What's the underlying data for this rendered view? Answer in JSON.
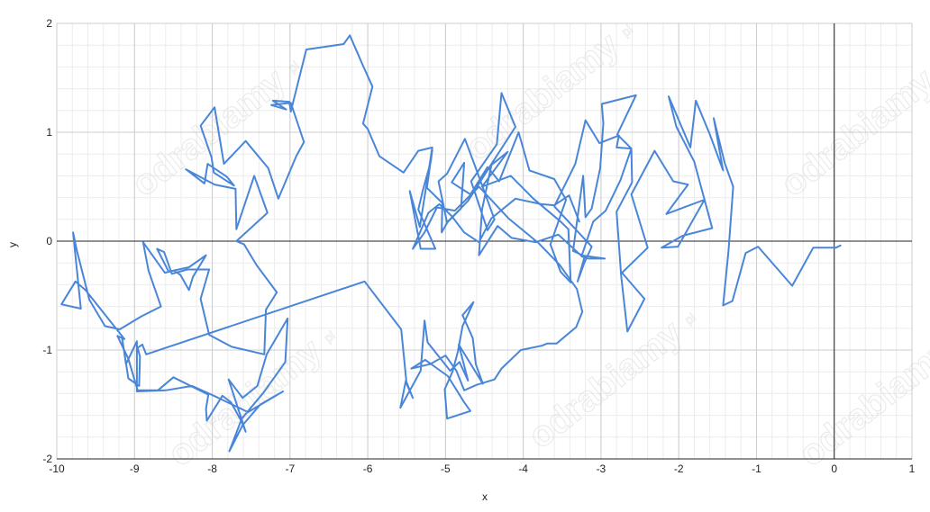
{
  "watermark": {
    "text": "odrabiamy",
    "suffix": "pl"
  },
  "chart_data": {
    "type": "line",
    "title": "",
    "xlabel": "x",
    "ylabel": "y",
    "xlim": [
      -10,
      1
    ],
    "ylim": [
      -2,
      2
    ],
    "x_ticks": [
      "-10",
      "-9",
      "-8",
      "-7",
      "-6",
      "-5",
      "-4",
      "-3",
      "-2",
      "-1",
      "0",
      "1"
    ],
    "y_ticks": [
      "-2",
      "-1",
      "0",
      "1",
      "2"
    ],
    "grid": true,
    "legend": "none",
    "colors": {
      "series": "#4a86d8",
      "grid_major": "#cccccc",
      "grid_minor": "#ececec",
      "axis": "#222222"
    },
    "series": [
      {
        "points": [
          [
            0.08,
            -0.04
          ],
          [
            0.02,
            -0.06
          ],
          [
            -0.27,
            -0.06
          ],
          [
            -0.54,
            -0.41
          ],
          [
            -0.98,
            -0.05
          ],
          [
            -1.14,
            -0.11
          ],
          [
            -1.31,
            -0.55
          ],
          [
            -1.43,
            -0.59
          ],
          [
            -1.36,
            -0.09
          ],
          [
            -1.3,
            0.5
          ],
          [
            -1.41,
            0.72
          ],
          [
            -1.55,
            1.13
          ],
          [
            -1.43,
            0.65
          ],
          [
            -1.6,
            0.98
          ],
          [
            -1.78,
            1.29
          ],
          [
            -1.85,
            0.86
          ],
          [
            -2.13,
            1.33
          ],
          [
            -2.03,
            1.05
          ],
          [
            -1.8,
            0.73
          ],
          [
            -1.57,
            0.12
          ],
          [
            -1.95,
            0.05
          ],
          [
            -2.22,
            -0.06
          ],
          [
            -2.01,
            -0.05
          ],
          [
            -1.67,
            0.38
          ],
          [
            -2.16,
            0.25
          ],
          [
            -1.88,
            0.52
          ],
          [
            -2.07,
            0.55
          ],
          [
            -2.31,
            0.83
          ],
          [
            -2.61,
            0.43
          ],
          [
            -2.4,
            -0.06
          ],
          [
            -2.73,
            -0.29
          ],
          [
            -2.44,
            -0.53
          ],
          [
            -2.66,
            -0.83
          ],
          [
            -2.74,
            -0.32
          ],
          [
            -2.8,
            0.27
          ],
          [
            -2.6,
            0.54
          ],
          [
            -2.61,
            0.85
          ],
          [
            -2.8,
            0.86
          ],
          [
            -2.77,
            0.97
          ],
          [
            -3.02,
            0.9
          ],
          [
            -3.2,
            1.11
          ],
          [
            -3.33,
            0.71
          ],
          [
            -3.6,
            0.32
          ],
          [
            -3.12,
            -0.05
          ],
          [
            -3.22,
            -0.21
          ],
          [
            -3.3,
            -0.37
          ],
          [
            -3.21,
            -0.14
          ],
          [
            -3.36,
            -0.09
          ],
          [
            -3.23,
            0.6
          ],
          [
            -3.2,
            0.22
          ],
          [
            -3.12,
            0.3
          ],
          [
            -3.01,
            0.67
          ],
          [
            -2.97,
            1.08
          ],
          [
            -2.99,
            1.26
          ],
          [
            -2.55,
            1.34
          ],
          [
            -2.79,
            0.98
          ],
          [
            -2.61,
            0.85
          ],
          [
            -2.75,
            0.56
          ],
          [
            -2.94,
            0.28
          ],
          [
            -3.1,
            0.18
          ],
          [
            -3.25,
            -0.14
          ],
          [
            -3.16,
            -0.16
          ],
          [
            -2.95,
            -0.16
          ],
          [
            -3.26,
            -0.13
          ],
          [
            -3.55,
            0.06
          ],
          [
            -3.84,
            -0.01
          ],
          [
            -4.15,
            0.03
          ],
          [
            -4.33,
            0.14
          ],
          [
            -4.57,
            -0.13
          ],
          [
            -4.53,
            0.29
          ],
          [
            -4.41,
            0.7
          ],
          [
            -4.2,
            0.82
          ],
          [
            -4.53,
            0.5
          ],
          [
            -4.16,
            0.6
          ],
          [
            -3.87,
            0.39
          ],
          [
            -3.52,
            0.18
          ],
          [
            -3.42,
            0.11
          ],
          [
            -3.39,
            -0.38
          ],
          [
            -3.52,
            -0.28
          ],
          [
            -3.65,
            -0.03
          ],
          [
            -3.45,
            0.38
          ],
          [
            -3.6,
            0.57
          ],
          [
            -3.92,
            0.65
          ],
          [
            -4.06,
            1.0
          ],
          [
            -4.31,
            0.55
          ],
          [
            -4.46,
            0.68
          ],
          [
            -4.68,
            0.43
          ],
          [
            -4.92,
            0.54
          ],
          [
            -4.76,
            0.72
          ],
          [
            -4.8,
            0.3
          ],
          [
            -4.98,
            0.17
          ],
          [
            -5.09,
            0.55
          ],
          [
            -4.98,
            0.62
          ],
          [
            -4.75,
            0.94
          ],
          [
            -4.61,
            0.67
          ],
          [
            -4.37,
            0.2
          ],
          [
            -4.46,
            0.1
          ],
          [
            -4.67,
            0.55
          ],
          [
            -4.34,
            0.89
          ],
          [
            -4.28,
            1.36
          ],
          [
            -4.1,
            1.05
          ],
          [
            -4.39,
            0.73
          ],
          [
            -4.71,
            0.37
          ],
          [
            -4.97,
            0.18
          ],
          [
            -5.05,
            0.08
          ],
          [
            -5.04,
            0.35
          ],
          [
            -5.24,
            0.49
          ],
          [
            -5.17,
            0.84
          ],
          [
            -5.19,
            0.73
          ],
          [
            -5.29,
            0.47
          ],
          [
            -5.35,
            0.29
          ],
          [
            -5.13,
            -0.07
          ],
          [
            -5.32,
            -0.07
          ],
          [
            -5.46,
            0.46
          ],
          [
            -5.33,
            0.13
          ],
          [
            -5.17,
            0.86
          ],
          [
            -5.35,
            0.83
          ],
          [
            -5.54,
            0.63
          ],
          [
            -5.85,
            0.78
          ],
          [
            -6.0,
            1.03
          ],
          [
            -6.06,
            1.08
          ],
          [
            -5.94,
            1.42
          ],
          [
            -6.06,
            1.61
          ],
          [
            -6.23,
            1.89
          ],
          [
            -6.31,
            1.81
          ],
          [
            -6.79,
            1.76
          ],
          [
            -6.99,
            1.19
          ],
          [
            -7.01,
            1.28
          ],
          [
            -7.22,
            1.29
          ],
          [
            -7.05,
            1.21
          ],
          [
            -7.24,
            1.25
          ],
          [
            -6.99,
            1.27
          ],
          [
            -6.82,
            0.91
          ],
          [
            -6.92,
            0.78
          ],
          [
            -7.15,
            0.39
          ],
          [
            -7.28,
            0.67
          ],
          [
            -7.57,
            0.92
          ],
          [
            -7.85,
            0.71
          ],
          [
            -7.97,
            1.23
          ],
          [
            -8.15,
            1.06
          ],
          [
            -8.01,
            0.77
          ],
          [
            -7.98,
            0.63
          ],
          [
            -7.72,
            0.51
          ],
          [
            -7.81,
            0.59
          ],
          [
            -8.06,
            0.71
          ],
          [
            -8.1,
            0.53
          ],
          [
            -8.34,
            0.66
          ],
          [
            -7.97,
            0.52
          ],
          [
            -7.7,
            0.48
          ],
          [
            -7.69,
            0.11
          ],
          [
            -7.46,
            0.6
          ],
          [
            -7.29,
            0.26
          ],
          [
            -7.69,
            0.0
          ],
          [
            -7.59,
            -0.03
          ],
          [
            -7.43,
            -0.22
          ],
          [
            -7.17,
            -0.47
          ],
          [
            -7.31,
            -0.63
          ],
          [
            -7.33,
            -1.04
          ],
          [
            -7.75,
            -0.97
          ],
          [
            -8.04,
            -0.86
          ],
          [
            -8.15,
            -0.53
          ],
          [
            -8.04,
            -0.26
          ],
          [
            -8.32,
            -0.26
          ],
          [
            -8.52,
            -0.3
          ],
          [
            -8.62,
            -0.1
          ],
          [
            -8.71,
            -0.07
          ],
          [
            -8.56,
            -0.28
          ],
          [
            -8.3,
            -0.24
          ],
          [
            -8.08,
            -0.13
          ],
          [
            -8.25,
            -0.33
          ],
          [
            -8.3,
            -0.45
          ],
          [
            -8.41,
            -0.31
          ],
          [
            -8.49,
            -0.27
          ],
          [
            -8.61,
            -0.29
          ],
          [
            -8.89,
            -0.01
          ],
          [
            -8.82,
            -0.27
          ],
          [
            -8.66,
            -0.6
          ],
          [
            -8.91,
            -0.69
          ],
          [
            -9.19,
            -0.81
          ],
          [
            -9.38,
            -0.78
          ],
          [
            -9.58,
            -0.54
          ],
          [
            -9.74,
            -0.09
          ],
          [
            -9.79,
            0.08
          ],
          [
            -9.69,
            -0.62
          ],
          [
            -9.94,
            -0.58
          ],
          [
            -9.76,
            -0.37
          ],
          [
            -9.63,
            -0.45
          ],
          [
            -9.13,
            -0.9
          ],
          [
            -9.22,
            -0.87
          ],
          [
            -9.08,
            -1.08
          ],
          [
            -8.96,
            -1.37
          ],
          [
            -8.7,
            -1.37
          ],
          [
            -8.5,
            -1.25
          ],
          [
            -8.05,
            -1.41
          ],
          [
            -8.08,
            -1.54
          ],
          [
            -8.07,
            -1.65
          ],
          [
            -7.87,
            -1.42
          ],
          [
            -7.76,
            -1.48
          ],
          [
            -7.62,
            -1.66
          ],
          [
            -7.57,
            -1.75
          ],
          [
            -7.79,
            -1.27
          ],
          [
            -7.61,
            -1.44
          ],
          [
            -7.42,
            -1.33
          ],
          [
            -7.3,
            -1.04
          ],
          [
            -7.03,
            -0.71
          ],
          [
            -7.06,
            -1.11
          ],
          [
            -7.34,
            -1.39
          ],
          [
            -7.62,
            -1.63
          ],
          [
            -7.78,
            -1.93
          ],
          [
            -7.61,
            -1.69
          ],
          [
            -7.38,
            -1.5
          ],
          [
            -7.09,
            -1.38
          ],
          [
            -7.54,
            -1.57
          ],
          [
            -7.98,
            -1.42
          ],
          [
            -8.26,
            -1.33
          ],
          [
            -8.6,
            -1.37
          ],
          [
            -8.97,
            -1.38
          ],
          [
            -8.97,
            -0.92
          ],
          [
            -9.11,
            -1.13
          ],
          [
            -9.16,
            -0.89
          ],
          [
            -9.08,
            -1.26
          ],
          [
            -8.94,
            -1.33
          ],
          [
            -8.93,
            -1.06
          ],
          [
            -8.96,
            -0.98
          ],
          [
            -8.9,
            -0.95
          ],
          [
            -8.85,
            -1.04
          ],
          [
            -6.04,
            -0.37
          ],
          [
            -5.57,
            -0.81
          ],
          [
            -5.5,
            -1.31
          ],
          [
            -5.42,
            -1.44
          ],
          [
            -5.51,
            -1.28
          ],
          [
            -5.58,
            -1.53
          ],
          [
            -5.32,
            -1.19
          ],
          [
            -5.27,
            -0.73
          ],
          [
            -5.23,
            -0.93
          ],
          [
            -4.94,
            -1.19
          ],
          [
            -4.82,
            -1.11
          ],
          [
            -4.71,
            -1.28
          ],
          [
            -4.83,
            -0.95
          ],
          [
            -4.52,
            -1.31
          ],
          [
            -4.61,
            -1.13
          ],
          [
            -4.65,
            -0.89
          ],
          [
            -4.78,
            -0.68
          ],
          [
            -4.64,
            -0.56
          ],
          [
            -4.78,
            -0.78
          ],
          [
            -4.84,
            -1.01
          ],
          [
            -4.91,
            -1.2
          ],
          [
            -5.01,
            -1.36
          ],
          [
            -4.98,
            -1.63
          ],
          [
            -4.68,
            -1.56
          ],
          [
            -4.76,
            -1.48
          ],
          [
            -4.97,
            -1.24
          ],
          [
            -5.26,
            -1.09
          ],
          [
            -5.44,
            -1.17
          ],
          [
            -5.2,
            -1.13
          ],
          [
            -5.0,
            -1.05
          ],
          [
            -4.86,
            -1.19
          ],
          [
            -4.76,
            -1.37
          ],
          [
            -4.6,
            -1.32
          ],
          [
            -4.37,
            -1.27
          ],
          [
            -4.28,
            -1.17
          ],
          [
            -4.03,
            -1.0
          ],
          [
            -3.76,
            -0.96
          ],
          [
            -3.69,
            -0.94
          ],
          [
            -3.57,
            -0.94
          ],
          [
            -3.32,
            -0.79
          ],
          [
            -3.24,
            -0.65
          ],
          [
            -3.31,
            -0.44
          ],
          [
            -3.53,
            -0.22
          ],
          [
            -3.8,
            -0.02
          ],
          [
            -4.19,
            0.21
          ],
          [
            -4.57,
            0.5
          ],
          [
            -4.88,
            0.28
          ],
          [
            -5.11,
            0.31
          ],
          [
            -5.27,
            0.08
          ],
          [
            -5.42,
            -0.07
          ],
          [
            -5.22,
            0.26
          ],
          [
            -5.08,
            0.34
          ],
          [
            -4.92,
            0.23
          ],
          [
            -4.76,
            0.08
          ],
          [
            -4.57,
            -0.01
          ],
          [
            -4.41,
            0.21
          ],
          [
            -4.1,
            0.39
          ],
          [
            -3.77,
            0.34
          ],
          [
            -3.6,
            0.33
          ],
          [
            -3.41,
            0.42
          ],
          [
            -3.28,
            0.18
          ]
        ]
      }
    ]
  }
}
